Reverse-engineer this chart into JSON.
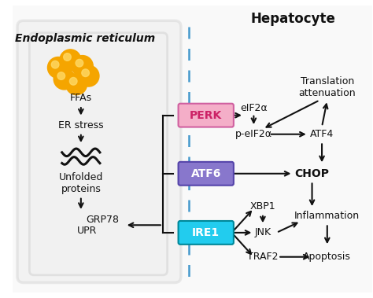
{
  "title": "Hepatocyte",
  "er_label": "Endoplasmic reticulum",
  "bg_color": "#ffffff",
  "ffa_label": "FFAs",
  "er_stress_label": "ER stress",
  "unfolded_label": "Unfolded\nproteins",
  "grp78_label": "GRP78",
  "upr_label": "UPR",
  "perk_label": "PERK",
  "perk_fc": "#f4aec8",
  "perk_ec": "#d060a0",
  "perk_tc": "#cc2266",
  "atf6_label": "ATF6",
  "atf6_fc": "#8877cc",
  "atf6_ec": "#5544aa",
  "atf6_tc": "#ffffff",
  "ire1_label": "IRE1",
  "ire1_fc": "#22ccee",
  "ire1_ec": "#008899",
  "ire1_tc": "#ffffff",
  "eif2a_label": "eIF2α",
  "peif2a_label": "p-eIF2α",
  "atf4_label": "ATF4",
  "transl_label": "Translation\nattenuation",
  "chop_label": "CHOP",
  "xbp1_label": "XBP1",
  "jnk_label": "JNK",
  "traf2_label": "TRAF2",
  "inflam_label": "Inflammation",
  "apop_label": "Apoptosis",
  "dashed_color": "#4499cc",
  "arrow_color": "#111111",
  "text_color": "#111111",
  "fs": 9,
  "fs_title": 12,
  "fs_er": 10
}
